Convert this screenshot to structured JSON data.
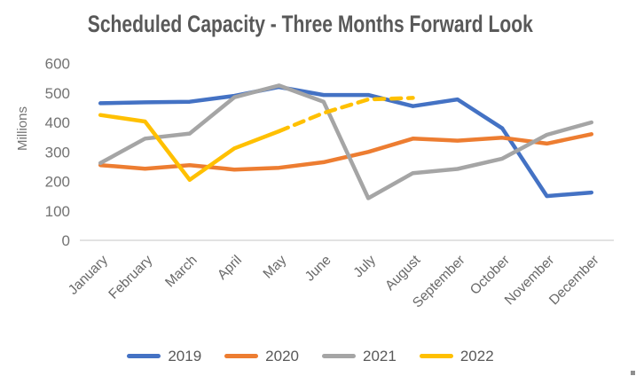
{
  "chart_data": {
    "type": "line",
    "title": "Scheduled Capacity - Three Months Forward Look",
    "xlabel": "",
    "ylabel": "Millions",
    "categories": [
      "January",
      "February",
      "March",
      "April",
      "May",
      "June",
      "July",
      "August",
      "September",
      "October",
      "November",
      "December"
    ],
    "y_ticks": [
      0,
      100,
      200,
      300,
      400,
      500,
      600
    ],
    "ylim": [
      0,
      600
    ],
    "grid": false,
    "legend_position": "bottom",
    "colors": {
      "axis_line": "#d9d9d9",
      "title_text": "#595959",
      "tick_text": "#737373",
      "legend_text": "#595959"
    },
    "series": [
      {
        "name": "2019",
        "color": "#4472C4",
        "style": "solid",
        "values": [
          465,
          468,
          470,
          490,
          520,
          493,
          493,
          455,
          478,
          380,
          150,
          162
        ]
      },
      {
        "name": "2020",
        "color": "#ED7D31",
        "style": "solid",
        "values": [
          255,
          243,
          255,
          240,
          246,
          265,
          300,
          345,
          338,
          348,
          328,
          360
        ]
      },
      {
        "name": "2021",
        "color": "#A5A5A5",
        "style": "solid",
        "values": [
          262,
          345,
          362,
          485,
          525,
          470,
          143,
          228,
          242,
          277,
          358,
          400
        ]
      },
      {
        "name": "2022",
        "color": "#FFC000",
        "style": "solid_then_dashed",
        "dash_from_index": 4,
        "values": [
          425,
          403,
          205,
          312,
          370,
          432,
          478,
          483,
          null,
          null,
          null,
          null
        ]
      }
    ]
  }
}
